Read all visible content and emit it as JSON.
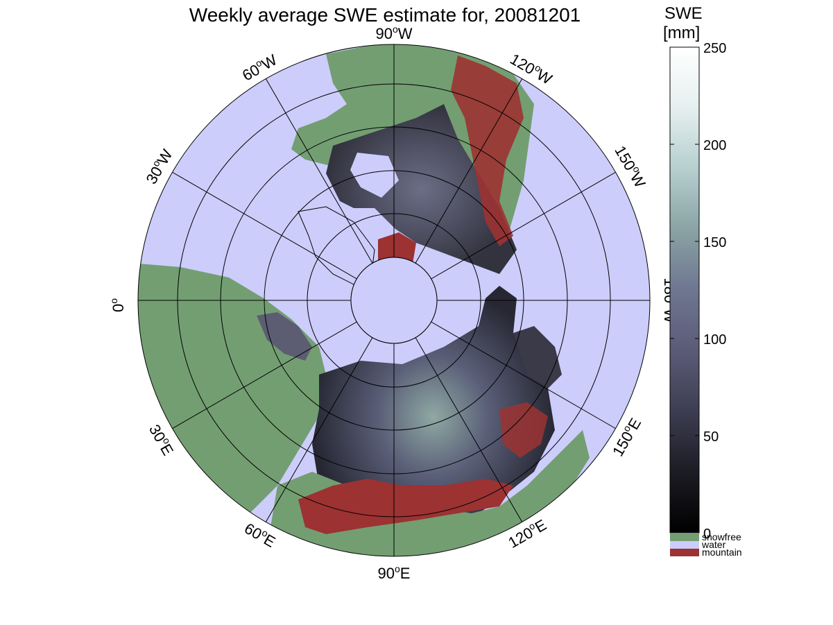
{
  "title": "Weekly average SWE estimate for, 20081201",
  "map": {
    "projection": "north polar stereographic",
    "ocean_color": "#cccdfb",
    "snowfree_color": "#739e72",
    "mountain_color": "#9c3232",
    "snow_dark_color": "#0a0a0e",
    "snow_light_color": "#8fa9a3",
    "graticule_color": "#000000",
    "longitude_labels": [
      {
        "id": "90w",
        "number": "90",
        "unit": "o",
        "hemi": "W"
      },
      {
        "id": "120w",
        "number": "120",
        "unit": "o",
        "hemi": "W"
      },
      {
        "id": "150w",
        "number": "150",
        "unit": "o",
        "hemi": "W"
      },
      {
        "id": "180w",
        "number": "180",
        "unit": "o",
        "hemi": "W"
      },
      {
        "id": "150e",
        "number": "150",
        "unit": "o",
        "hemi": "E"
      },
      {
        "id": "120e",
        "number": "120",
        "unit": "o",
        "hemi": "E"
      },
      {
        "id": "90e",
        "number": "90",
        "unit": "o",
        "hemi": "E"
      },
      {
        "id": "60e",
        "number": "60",
        "unit": "o",
        "hemi": "E"
      },
      {
        "id": "30e",
        "number": "30",
        "unit": "o",
        "hemi": "E"
      },
      {
        "id": "0",
        "number": "0",
        "unit": "o",
        "hemi": ""
      },
      {
        "id": "30w",
        "number": "30",
        "unit": "o",
        "hemi": "W"
      },
      {
        "id": "60w",
        "number": "60",
        "unit": "o",
        "hemi": "W"
      }
    ]
  },
  "colorbar": {
    "title_line1": "SWE",
    "title_line2": "[mm]",
    "min": 0,
    "max": 250,
    "ticks": [
      "0",
      "50",
      "100",
      "150",
      "200",
      "250"
    ],
    "gradient_colors": [
      "#000000",
      "#1c1c24",
      "#3d3d52",
      "#5b5b78",
      "#6e7690",
      "#8aa3a4",
      "#b6cfcf",
      "#e6efef",
      "#ffffff"
    ],
    "legend": [
      {
        "label": "snowfree",
        "color": "#739e72"
      },
      {
        "label": "water",
        "color": "#cccdfb"
      },
      {
        "label": "mountain",
        "color": "#9c3232"
      }
    ]
  }
}
